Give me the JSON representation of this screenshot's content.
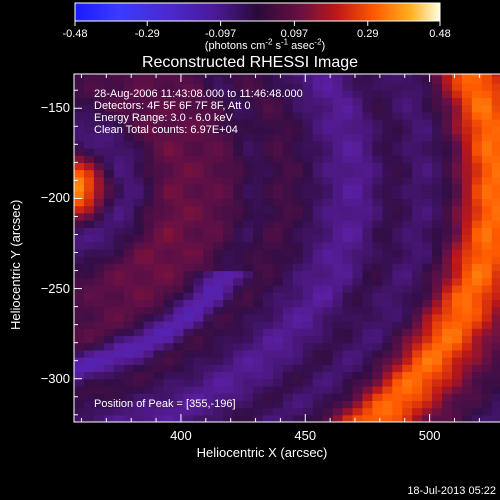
{
  "chart_data": {
    "type": "heatmap",
    "title": "Reconstructed RHESSI Image",
    "colorbar": {
      "ticks": [
        -0.48,
        -0.29,
        -0.097,
        0.097,
        0.29,
        0.48
      ],
      "tick_labels": [
        "-0.48",
        "-0.29",
        "-0.097",
        "0.097",
        "0.29",
        "0.48"
      ],
      "unit_label": "(photons cm",
      "unit_exp1": "-2",
      "unit_mid": " s",
      "unit_exp2": "-1",
      "unit_mid2": " asec",
      "unit_exp3": "-2",
      "unit_end": ")",
      "range": [
        -0.48,
        0.48
      ]
    },
    "xlabel": "Heliocentric X (arcsec)",
    "ylabel": "Heliocentric Y (arcsec)",
    "xlim": [
      357,
      546
    ],
    "ylim": [
      -324,
      -131
    ],
    "xticks": [
      400,
      450,
      500
    ],
    "xtick_labels": [
      "400",
      "450",
      "500"
    ],
    "yticks": [
      -150,
      -200,
      -250,
      -300
    ],
    "ytick_labels": [
      "−150",
      "−200",
      "−250",
      "−300"
    ],
    "annotations": [
      "28-Aug-2006 11:43:08.000 to 11:46:48.000",
      "Detectors: 4F 5F 6F 7F 8F, Att 0",
      "Energy Range: 3.0 - 6.0 keV",
      "Clean    Total counts: 6.97E+04"
    ],
    "peak_label": "Position of Peak = [355,-196]",
    "peak": [
      355,
      -196
    ],
    "pixel_size_arcsec": 4
  },
  "footer": {
    "timestamp": "18-Jul-2013 05:22"
  }
}
